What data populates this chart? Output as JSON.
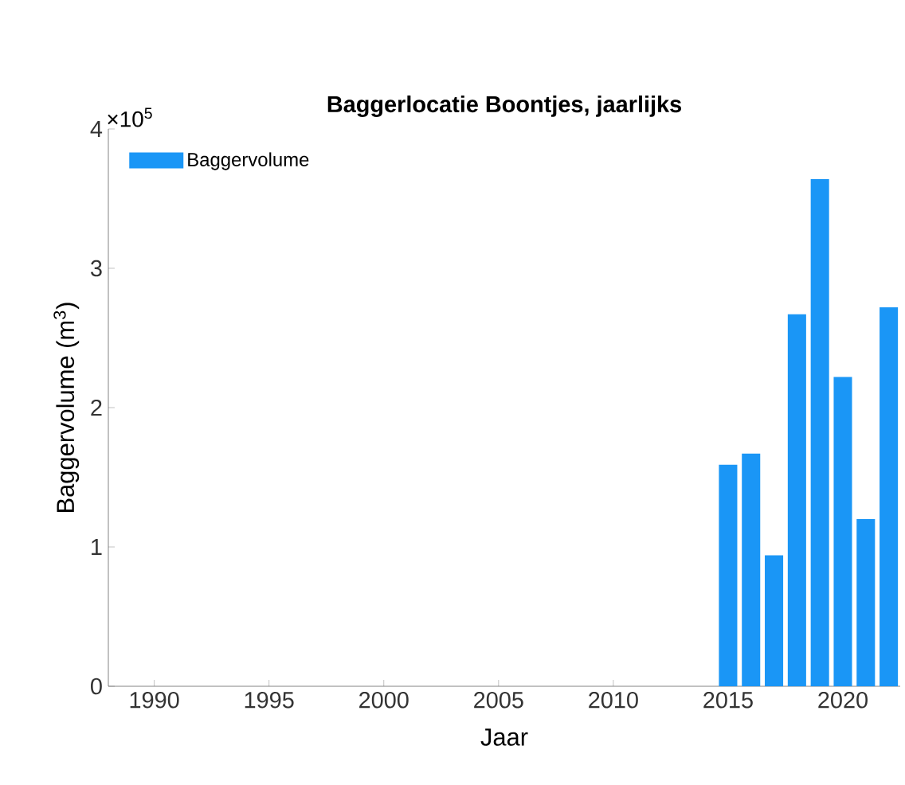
{
  "chart_data": {
    "type": "bar",
    "title": "Baggerlocatie Boontjes, jaarlijks",
    "xlabel": "Jaar",
    "ylabel": "Baggervolume (m$^{3}$)",
    "x": [
      2015,
      2016,
      2017,
      2018,
      2019,
      2020,
      2021,
      2022
    ],
    "series": [
      {
        "name": "Baggervolume",
        "color": "#1a96f6",
        "values": [
          1.59,
          1.67,
          0.94,
          2.67,
          3.64,
          2.22,
          1.2,
          2.72
        ]
      }
    ],
    "xlim": [
      1988,
      2022.5
    ],
    "xticks": [
      1990,
      1995,
      2000,
      2005,
      2010,
      2015,
      2020
    ],
    "ylim": [
      0,
      4
    ],
    "yticks": [
      0,
      1,
      2,
      3,
      4
    ],
    "annotations": [
      "×10$^{5}$"
    ],
    "legend": "top left"
  }
}
